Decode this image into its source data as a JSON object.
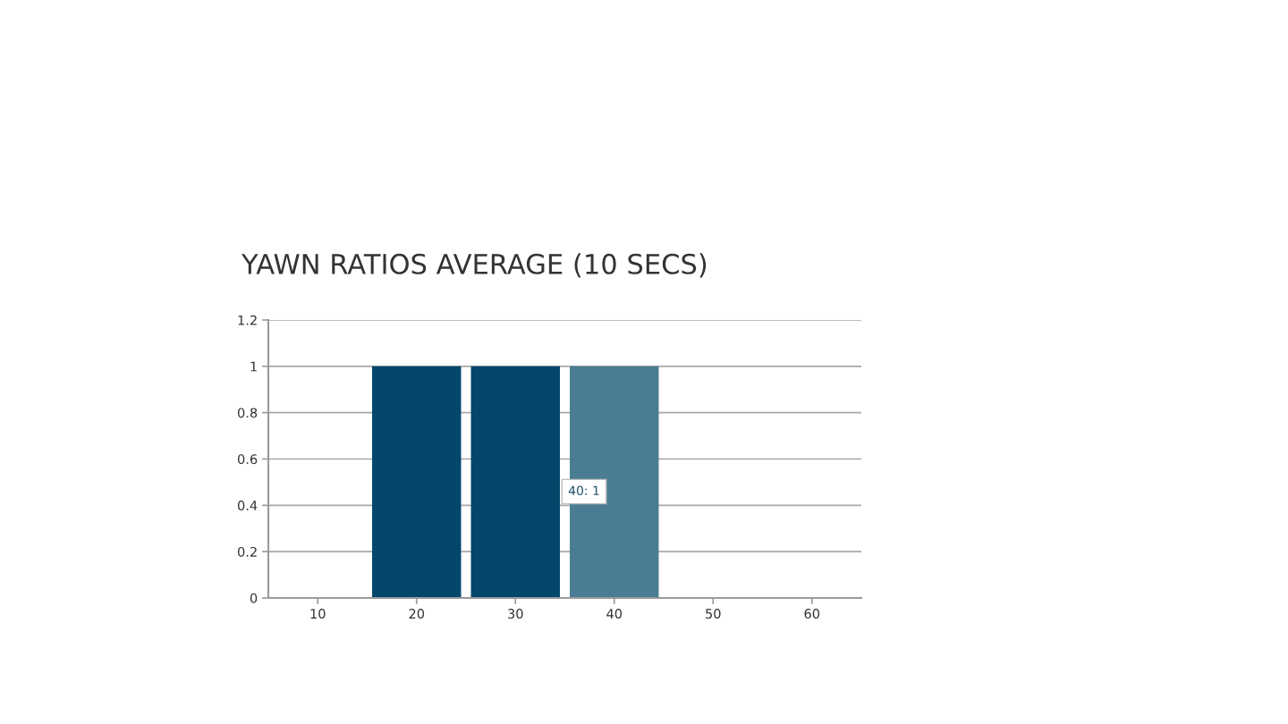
{
  "chart_data": {
    "type": "bar",
    "title": "YAWN RATIOS AVERAGE (10 SECS)",
    "categories": [
      "10",
      "20",
      "30",
      "40",
      "50",
      "60"
    ],
    "values": [
      0,
      1,
      1,
      1,
      0,
      0
    ],
    "colors": [
      "#03476a",
      "#03476a",
      "#03476a",
      "#4a7d93",
      "#03476a",
      "#03476a"
    ],
    "ylim": [
      0,
      1.2
    ],
    "yticks": [
      0,
      0.2,
      0.4,
      0.6,
      0.8,
      1,
      1.2
    ],
    "grid": "y",
    "annotations": [
      "40: 1"
    ]
  }
}
